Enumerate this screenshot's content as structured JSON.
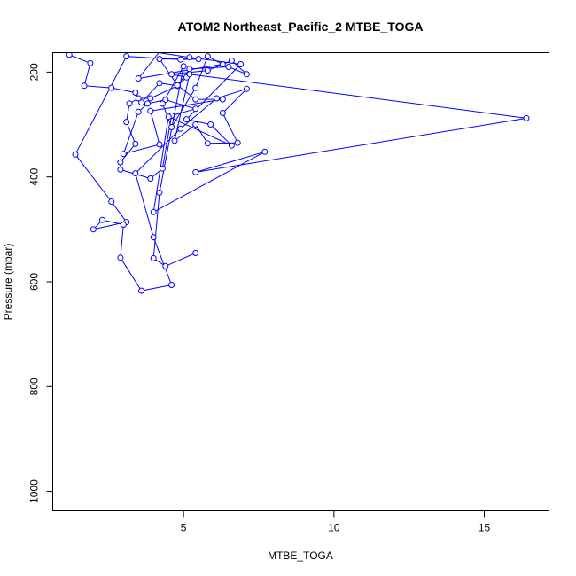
{
  "chart_data": {
    "type": "line",
    "title": "ATOM2 Northeast_Pacific_2 MTBE_TOGA",
    "xlabel": "MTBE_TOGA",
    "ylabel": "Pressure (mbar)",
    "xlim": [
      0.65,
      17.15
    ],
    "ylim": [
      1037,
      163
    ],
    "y_reversed": true,
    "x_ticks": [
      5,
      10,
      15
    ],
    "y_ticks": [
      200,
      400,
      600,
      800,
      1000
    ],
    "grid": false,
    "marker": "open-circle",
    "color": "#0000ff",
    "series": [
      {
        "x": [
          1.2,
          1.9,
          1.7,
          2.6,
          3.4,
          3.6,
          4.2,
          4.8,
          5.1,
          4.6,
          5.8,
          6.6,
          7.1,
          6.5,
          5.2,
          4.8,
          3.9,
          3.5,
          3.2,
          3.1,
          3.4,
          2.9,
          2.9,
          3.9,
          4.3,
          4.6,
          5.4,
          4.4,
          3.8,
          3.5,
          3.0,
          4.2,
          3.9,
          6.3,
          5.4,
          4.8,
          4.2,
          5.5,
          4.9,
          3.1,
          1.4,
          2.6,
          3.1,
          2.0,
          2.3,
          3.0,
          2.9,
          3.6,
          4.6,
          4.0,
          3.4,
          4.9,
          6.1,
          7.1,
          6.3,
          6.8,
          5.8,
          5.4,
          4.7,
          5.2,
          16.4,
          5.4,
          7.7,
          4.0,
          4.5,
          6.6,
          5.9,
          5.1,
          6.9,
          5.2,
          3.0,
          2.7,
          4.3,
          3.5,
          6.3,
          5.8,
          5.4,
          4.6,
          4.3,
          5.0,
          4.2,
          4.0,
          4.4,
          5.4
        ],
        "y": [
          167,
          183,
          226,
          230,
          239,
          258,
          221,
          226,
          210,
          204,
          197,
          178,
          204,
          190,
          194,
          226,
          250,
          250,
          260,
          295,
          337,
          372,
          386,
          403,
          384,
          283,
          270,
          253,
          260,
          276,
          356,
          338,
          274,
          252,
          252,
          225,
          175,
          175,
          176,
          170,
          357,
          447,
          486,
          500,
          482,
          491,
          554,
          617,
          606,
          515,
          393,
          308,
          250,
          232,
          278,
          335,
          336,
          300,
          331,
          204,
          288,
          391,
          352,
          467,
          285,
          340,
          300,
          290,
          185,
          172,
          153,
          158,
          154,
          212,
          185,
          170,
          230,
          305,
          260,
          189,
          430,
          555,
          570,
          545
        ]
      }
    ]
  }
}
